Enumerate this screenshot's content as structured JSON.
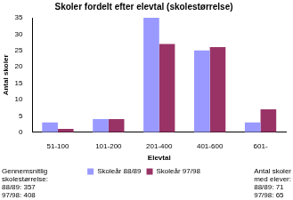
{
  "chart_data": {
    "type": "bar",
    "title": "Skoler fordelt efter elevtal (skolestørrelse)",
    "x_label": "Elevtal",
    "y_label": "Antal skoler",
    "categories": [
      "51-100",
      "101-200",
      "201-400",
      "401-600",
      "601-"
    ],
    "series": [
      {
        "name": "Skoleår 88/89",
        "color": "#9999ff",
        "values": [
          3,
          4,
          35,
          25,
          3
        ]
      },
      {
        "name": "Skoleår 97/98",
        "color": "#993366",
        "values": [
          1,
          4,
          27,
          26,
          7
        ]
      }
    ],
    "ylim": [
      0,
      35
    ],
    "yticks": [
      0,
      5,
      10,
      15,
      20,
      25,
      30,
      35
    ],
    "grid": false,
    "legend": "bottom",
    "annotations": [
      [
        "Gennemsnitlig",
        "skolestørrelse:",
        "88/89: 357",
        "97/98: 408"
      ],
      [
        "Antal skoler",
        "med elever:",
        "88/89: 71",
        "97/98: 65"
      ]
    ]
  }
}
